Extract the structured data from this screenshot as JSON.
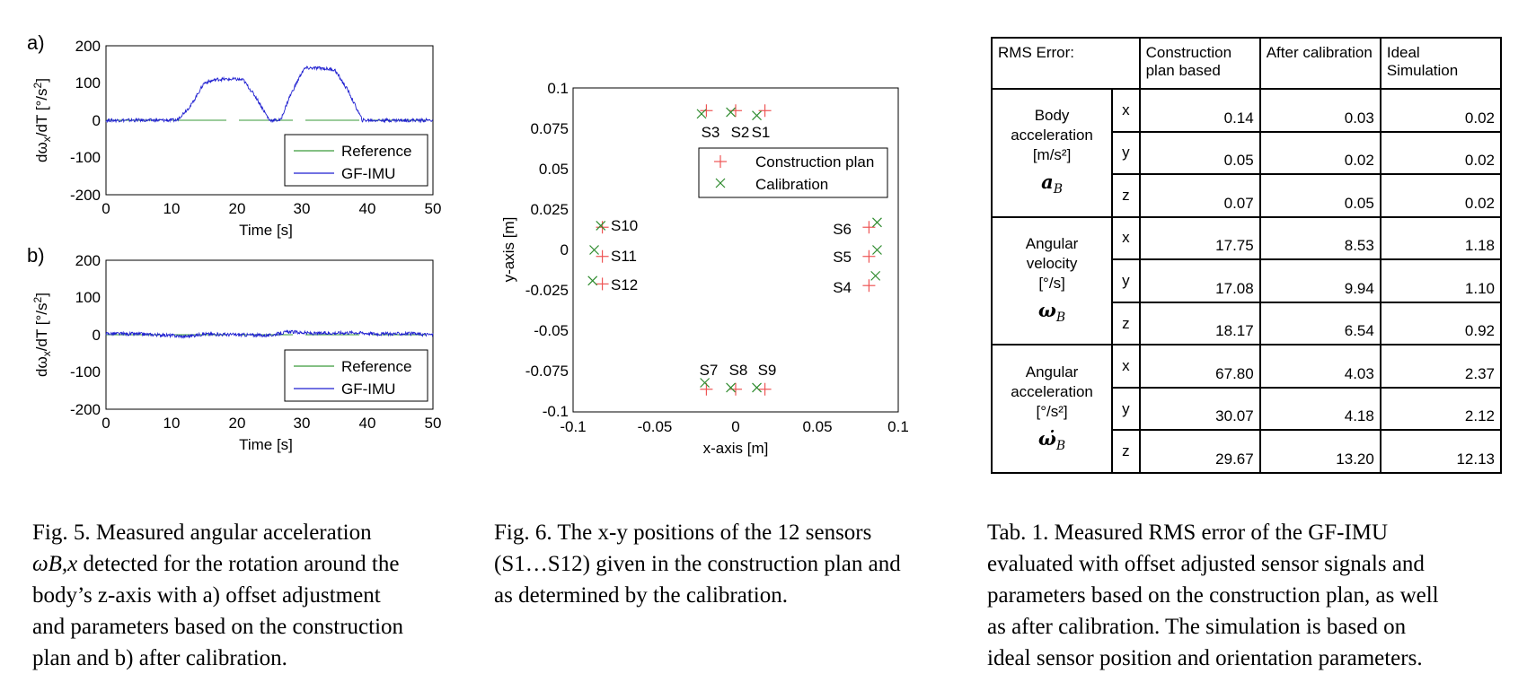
{
  "fig5": {
    "panels": [
      {
        "id": "a",
        "label": "a)",
        "ylabel": "dωx/dT [°/s²]",
        "xlabel": "Time [s]",
        "yticks": [
          "200",
          "100",
          "0",
          "-100",
          "-200"
        ],
        "xticks": [
          "0",
          "10",
          "20",
          "30",
          "40",
          "50"
        ],
        "legend": [
          "Reference",
          "GF-IMU"
        ]
      },
      {
        "id": "b",
        "label": "b)",
        "ylabel": "dωx/dT [°/s²]",
        "xlabel": "Time [s]",
        "yticks": [
          "200",
          "100",
          "0",
          "-100",
          "-200"
        ],
        "xticks": [
          "0",
          "10",
          "20",
          "30",
          "40",
          "50"
        ],
        "legend": [
          "Reference",
          "GF-IMU"
        ]
      }
    ],
    "caption": {
      "line1": "Fig. 5. Measured angular acceleration",
      "line2_symbol": "ω̇B,x",
      "line2_rest": " detected for the rotation around the",
      "line3": "body’s z-axis with a) offset adjustment",
      "line4": "and parameters based on the construction",
      "line5": "plan and b) after calibration."
    }
  },
  "fig6": {
    "xlabel": "x-axis [m]",
    "ylabel": "y-axis [m]",
    "xticks": [
      "-0.1",
      "-0.05",
      "0",
      "0.05",
      "0.1"
    ],
    "yticks": [
      "0.1",
      "0.075",
      "0.05",
      "0.025",
      "0",
      "-0.025",
      "-0.05",
      "-0.075",
      "-0.1"
    ],
    "legend": [
      "Construction plan",
      "Calibration"
    ],
    "caption": {
      "line1": "Fig. 6. The x-y positions of the 12 sensors",
      "line2": "(S1…S12) given in the construction plan and",
      "line3": "as determined by the calibration."
    }
  },
  "chart_data": [
    {
      "type": "line",
      "panel": "a",
      "xlabel": "Time [s]",
      "ylabel": "dωx/dT [°/s²]",
      "xlim": [
        0,
        50
      ],
      "ylim": [
        -200,
        200
      ],
      "legend_position": "bottom-right",
      "grid": false,
      "series": [
        {
          "name": "Reference",
          "color": "#3a9a3a",
          "x": [
            0,
            50
          ],
          "y": [
            0,
            0
          ]
        },
        {
          "name": "GF-IMU",
          "color": "#1f1fd0",
          "x": [
            0,
            10.8,
            13,
            15,
            17,
            20,
            21,
            23,
            25,
            26.7,
            28,
            30,
            30.5,
            33,
            35,
            37,
            39.2,
            50
          ],
          "y": [
            0,
            0,
            40,
            100,
            110,
            110,
            108,
            60,
            0,
            0,
            60,
            130,
            140,
            140,
            135,
            80,
            0,
            0
          ]
        }
      ]
    },
    {
      "type": "line",
      "panel": "b",
      "xlabel": "Time [s]",
      "ylabel": "dωx/dT [°/s²]",
      "xlim": [
        0,
        50
      ],
      "ylim": [
        -200,
        200
      ],
      "legend_position": "bottom-right",
      "grid": false,
      "series": [
        {
          "name": "Reference",
          "color": "#3a9a3a",
          "x": [
            0,
            50
          ],
          "y": [
            0,
            0
          ]
        },
        {
          "name": "GF-IMU",
          "color": "#1f1fd0",
          "x": [
            0,
            5,
            10,
            12,
            15,
            20,
            25,
            27,
            28,
            32,
            38,
            42,
            46,
            50
          ],
          "y": [
            3,
            2,
            -2,
            -5,
            2,
            0,
            -2,
            5,
            8,
            3,
            6,
            2,
            3,
            0
          ]
        }
      ]
    },
    {
      "type": "scatter",
      "xlabel": "x-axis [m]",
      "ylabel": "y-axis [m]",
      "xlim": [
        -0.1,
        0.1
      ],
      "ylim": [
        -0.1,
        0.1
      ],
      "legend_position": "top-right",
      "grid": false,
      "series": [
        {
          "name": "Construction plan",
          "color": "#ee5555",
          "marker": "+",
          "points": [
            {
              "x": 0.018,
              "y": 0.086
            },
            {
              "x": 0,
              "y": 0.086
            },
            {
              "x": -0.018,
              "y": 0.086
            },
            {
              "x": 0.082,
              "y": -0.022
            },
            {
              "x": 0.082,
              "y": -0.004
            },
            {
              "x": 0.082,
              "y": 0.014
            },
            {
              "x": -0.018,
              "y": -0.086
            },
            {
              "x": 0,
              "y": -0.086
            },
            {
              "x": 0.018,
              "y": -0.086
            },
            {
              "x": -0.082,
              "y": 0.014
            },
            {
              "x": -0.082,
              "y": -0.004
            },
            {
              "x": -0.082,
              "y": -0.021
            }
          ]
        },
        {
          "name": "Calibration",
          "color": "#2e8b2e",
          "marker": "x",
          "points": [
            {
              "x": 0.013,
              "y": 0.083
            },
            {
              "x": -0.003,
              "y": 0.085
            },
            {
              "x": -0.021,
              "y": 0.084
            },
            {
              "x": 0.086,
              "y": -0.016
            },
            {
              "x": 0.087,
              "y": 0
            },
            {
              "x": 0.087,
              "y": 0.017
            },
            {
              "x": -0.019,
              "y": -0.082
            },
            {
              "x": -0.003,
              "y": -0.085
            },
            {
              "x": 0.013,
              "y": -0.085
            },
            {
              "x": -0.083,
              "y": 0.015
            },
            {
              "x": -0.087,
              "y": 0
            },
            {
              "x": -0.088,
              "y": -0.019
            }
          ]
        }
      ],
      "point_labels": [
        "S1",
        "S2",
        "S3",
        "S4",
        "S5",
        "S6",
        "S7",
        "S8",
        "S9",
        "S10",
        "S11",
        "S12"
      ]
    }
  ],
  "table1": {
    "header": [
      "RMS Error:",
      "Construction plan based",
      "After calibration",
      "Ideal Simulation"
    ],
    "groups": [
      {
        "name_lines": [
          "Body",
          "acceleration",
          "[m/s²]"
        ],
        "symbol": "a",
        "symbol_sub": "B",
        "rows": [
          {
            "axis": "x",
            "values": [
              "0.14",
              "0.03",
              "0.02"
            ]
          },
          {
            "axis": "y",
            "values": [
              "0.05",
              "0.02",
              "0.02"
            ]
          },
          {
            "axis": "z",
            "values": [
              "0.07",
              "0.05",
              "0.02"
            ]
          }
        ]
      },
      {
        "name_lines": [
          "Angular",
          "velocity",
          "[°/s]"
        ],
        "symbol": "ω",
        "symbol_sub": "B",
        "rows": [
          {
            "axis": "x",
            "values": [
              "17.75",
              "8.53",
              "1.18"
            ]
          },
          {
            "axis": "y",
            "values": [
              "17.08",
              "9.94",
              "1.10"
            ]
          },
          {
            "axis": "z",
            "values": [
              "18.17",
              "6.54",
              "0.92"
            ]
          }
        ]
      },
      {
        "name_lines": [
          "Angular",
          "acceleration",
          "[°/s²]"
        ],
        "symbol": "ω̇",
        "symbol_sub": "B",
        "rows": [
          {
            "axis": "x",
            "values": [
              "67.80",
              "4.03",
              "2.37"
            ]
          },
          {
            "axis": "y",
            "values": [
              "30.07",
              "4.18",
              "2.12"
            ]
          },
          {
            "axis": "z",
            "values": [
              "29.67",
              "13.20",
              "12.13"
            ]
          }
        ]
      }
    ],
    "caption": {
      "line1": "Tab. 1. Measured RMS error of the GF-IMU",
      "line2": "evaluated with offset adjusted sensor signals and",
      "line3": "parameters based on the construction plan, as well",
      "line4": "as after calibration. The simulation is based on",
      "line5": "ideal sensor position and orientation parameters."
    }
  }
}
